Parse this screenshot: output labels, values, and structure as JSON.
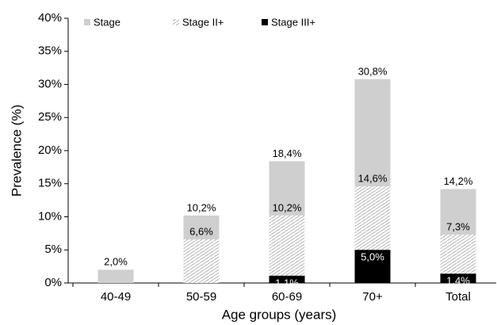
{
  "chart_data": {
    "type": "overlaid-bar",
    "y_label": "Prevalence (%)",
    "x_label": "Age groups (years)",
    "categories": [
      "40-49",
      "50-59",
      "60-69",
      "70+",
      "Total"
    ],
    "series": [
      {
        "name": "Stage",
        "color": "#cfcfcf",
        "pattern": "solid",
        "values": [
          2.0,
          10.2,
          18.4,
          30.8,
          14.2
        ],
        "value_labels": [
          "2,0%",
          "10,2%",
          "18,4%",
          "30,8%",
          "14,2%"
        ]
      },
      {
        "name": "Stage II+",
        "color": "#b5b5b5",
        "pattern": "hatch",
        "values": [
          null,
          6.6,
          10.2,
          14.6,
          7.3
        ],
        "value_labels": [
          null,
          "6,6%",
          "10,2%",
          "14,6%",
          "7,3%"
        ]
      },
      {
        "name": "Stage III+",
        "color": "#000000",
        "pattern": "solid",
        "values": [
          null,
          null,
          1.1,
          5.0,
          1.4
        ],
        "value_labels": [
          null,
          null,
          "1,1%",
          "5,0%",
          "1,4%"
        ]
      }
    ],
    "ylim": [
      0,
      40
    ],
    "yticks": [
      {
        "value": 0,
        "label": "0%"
      },
      {
        "value": 5,
        "label": "5%"
      },
      {
        "value": 10,
        "label": "10%"
      },
      {
        "value": 15,
        "label": "15%"
      },
      {
        "value": 20,
        "label": "20%"
      },
      {
        "value": 25,
        "label": "25%"
      },
      {
        "value": 30,
        "label": "30%"
      },
      {
        "value": 35,
        "label": "35%"
      },
      {
        "value": 40,
        "label": "40%"
      }
    ],
    "legend": "top-left"
  }
}
